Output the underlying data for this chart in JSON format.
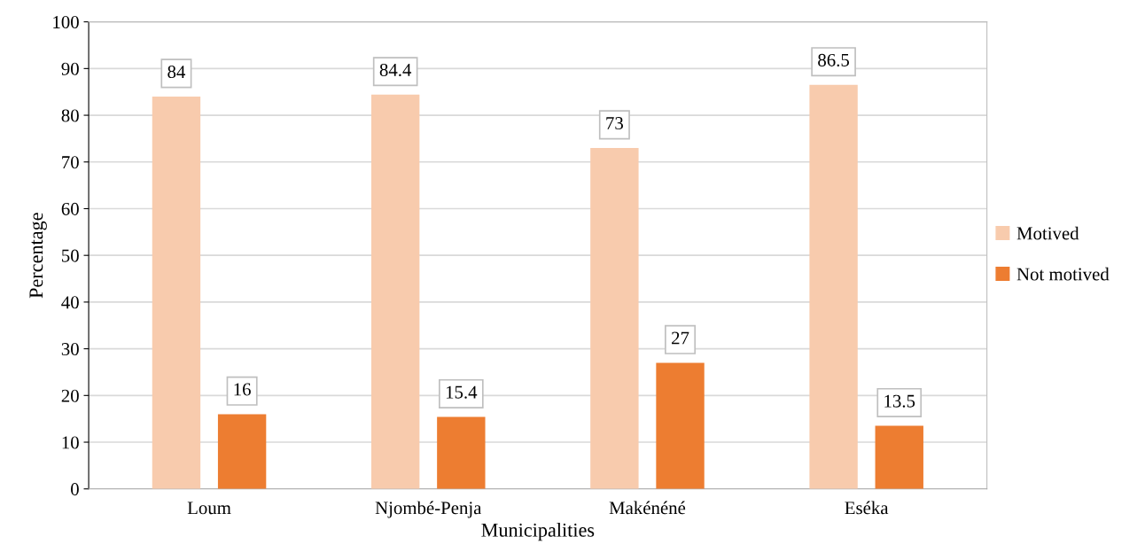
{
  "chart_data": {
    "type": "bar",
    "xlabel": "Municipalities",
    "ylabel": "Percentage",
    "categories": [
      "Loum",
      "Njombé-Penja",
      "Makénéné",
      "Eséka"
    ],
    "series": [
      {
        "name": "Motived",
        "color": "#f8cbad",
        "values": [
          84,
          84.4,
          73,
          86.5
        ]
      },
      {
        "name": "Not motived",
        "color": "#ed7d31",
        "values": [
          16,
          15.4,
          27,
          13.5
        ]
      }
    ],
    "ylim": [
      0,
      100
    ],
    "yticks": [
      0,
      10,
      20,
      30,
      40,
      50,
      60,
      70,
      80,
      90,
      100
    ],
    "grid": "y",
    "legend": "right",
    "data_labels": true
  }
}
